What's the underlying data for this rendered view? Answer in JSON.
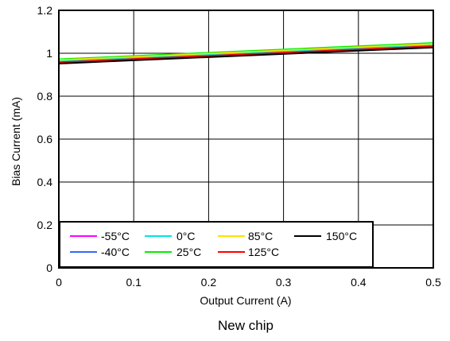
{
  "chart_data": {
    "type": "line",
    "xlabel": "Output Current (A)",
    "ylabel": "Bias Current (mA)",
    "caption": "New chip",
    "xlim": [
      0,
      0.5
    ],
    "ylim": [
      0,
      1.2
    ],
    "xticks": [
      0,
      0.1,
      0.2,
      0.3,
      0.4,
      0.5
    ],
    "yticks": [
      0,
      0.2,
      0.4,
      0.6,
      0.8,
      1,
      1.2
    ],
    "xtick_labels": [
      "0",
      "0.1",
      "0.2",
      "0.3",
      "0.4",
      "0.5"
    ],
    "ytick_labels": [
      "0",
      "0.2",
      "0.4",
      "0.6",
      "0.8",
      "1",
      "1.2"
    ],
    "grid": true,
    "legend_position": "bottom-left",
    "series": [
      {
        "name": "-55°C",
        "color": "#ff00ff",
        "x": [
          0,
          0.5
        ],
        "y": [
          0.955,
          1.03
        ]
      },
      {
        "name": "-40°C",
        "color": "#3366ff",
        "x": [
          0,
          0.5
        ],
        "y": [
          0.957,
          1.032
        ]
      },
      {
        "name": "0°C",
        "color": "#00e5e5",
        "x": [
          0,
          0.5
        ],
        "y": [
          0.962,
          1.037
        ]
      },
      {
        "name": "25°C",
        "color": "#00ee00",
        "x": [
          0,
          0.5
        ],
        "y": [
          0.972,
          1.048
        ]
      },
      {
        "name": "85°C",
        "color": "#ffe000",
        "x": [
          0,
          0.5
        ],
        "y": [
          0.968,
          1.043
        ]
      },
      {
        "name": "125°C",
        "color": "#ff0000",
        "x": [
          0,
          0.5
        ],
        "y": [
          0.958,
          1.033
        ]
      },
      {
        "name": "150°C",
        "color": "#000000",
        "x": [
          0,
          0.5
        ],
        "y": [
          0.952,
          1.027
        ]
      }
    ]
  }
}
